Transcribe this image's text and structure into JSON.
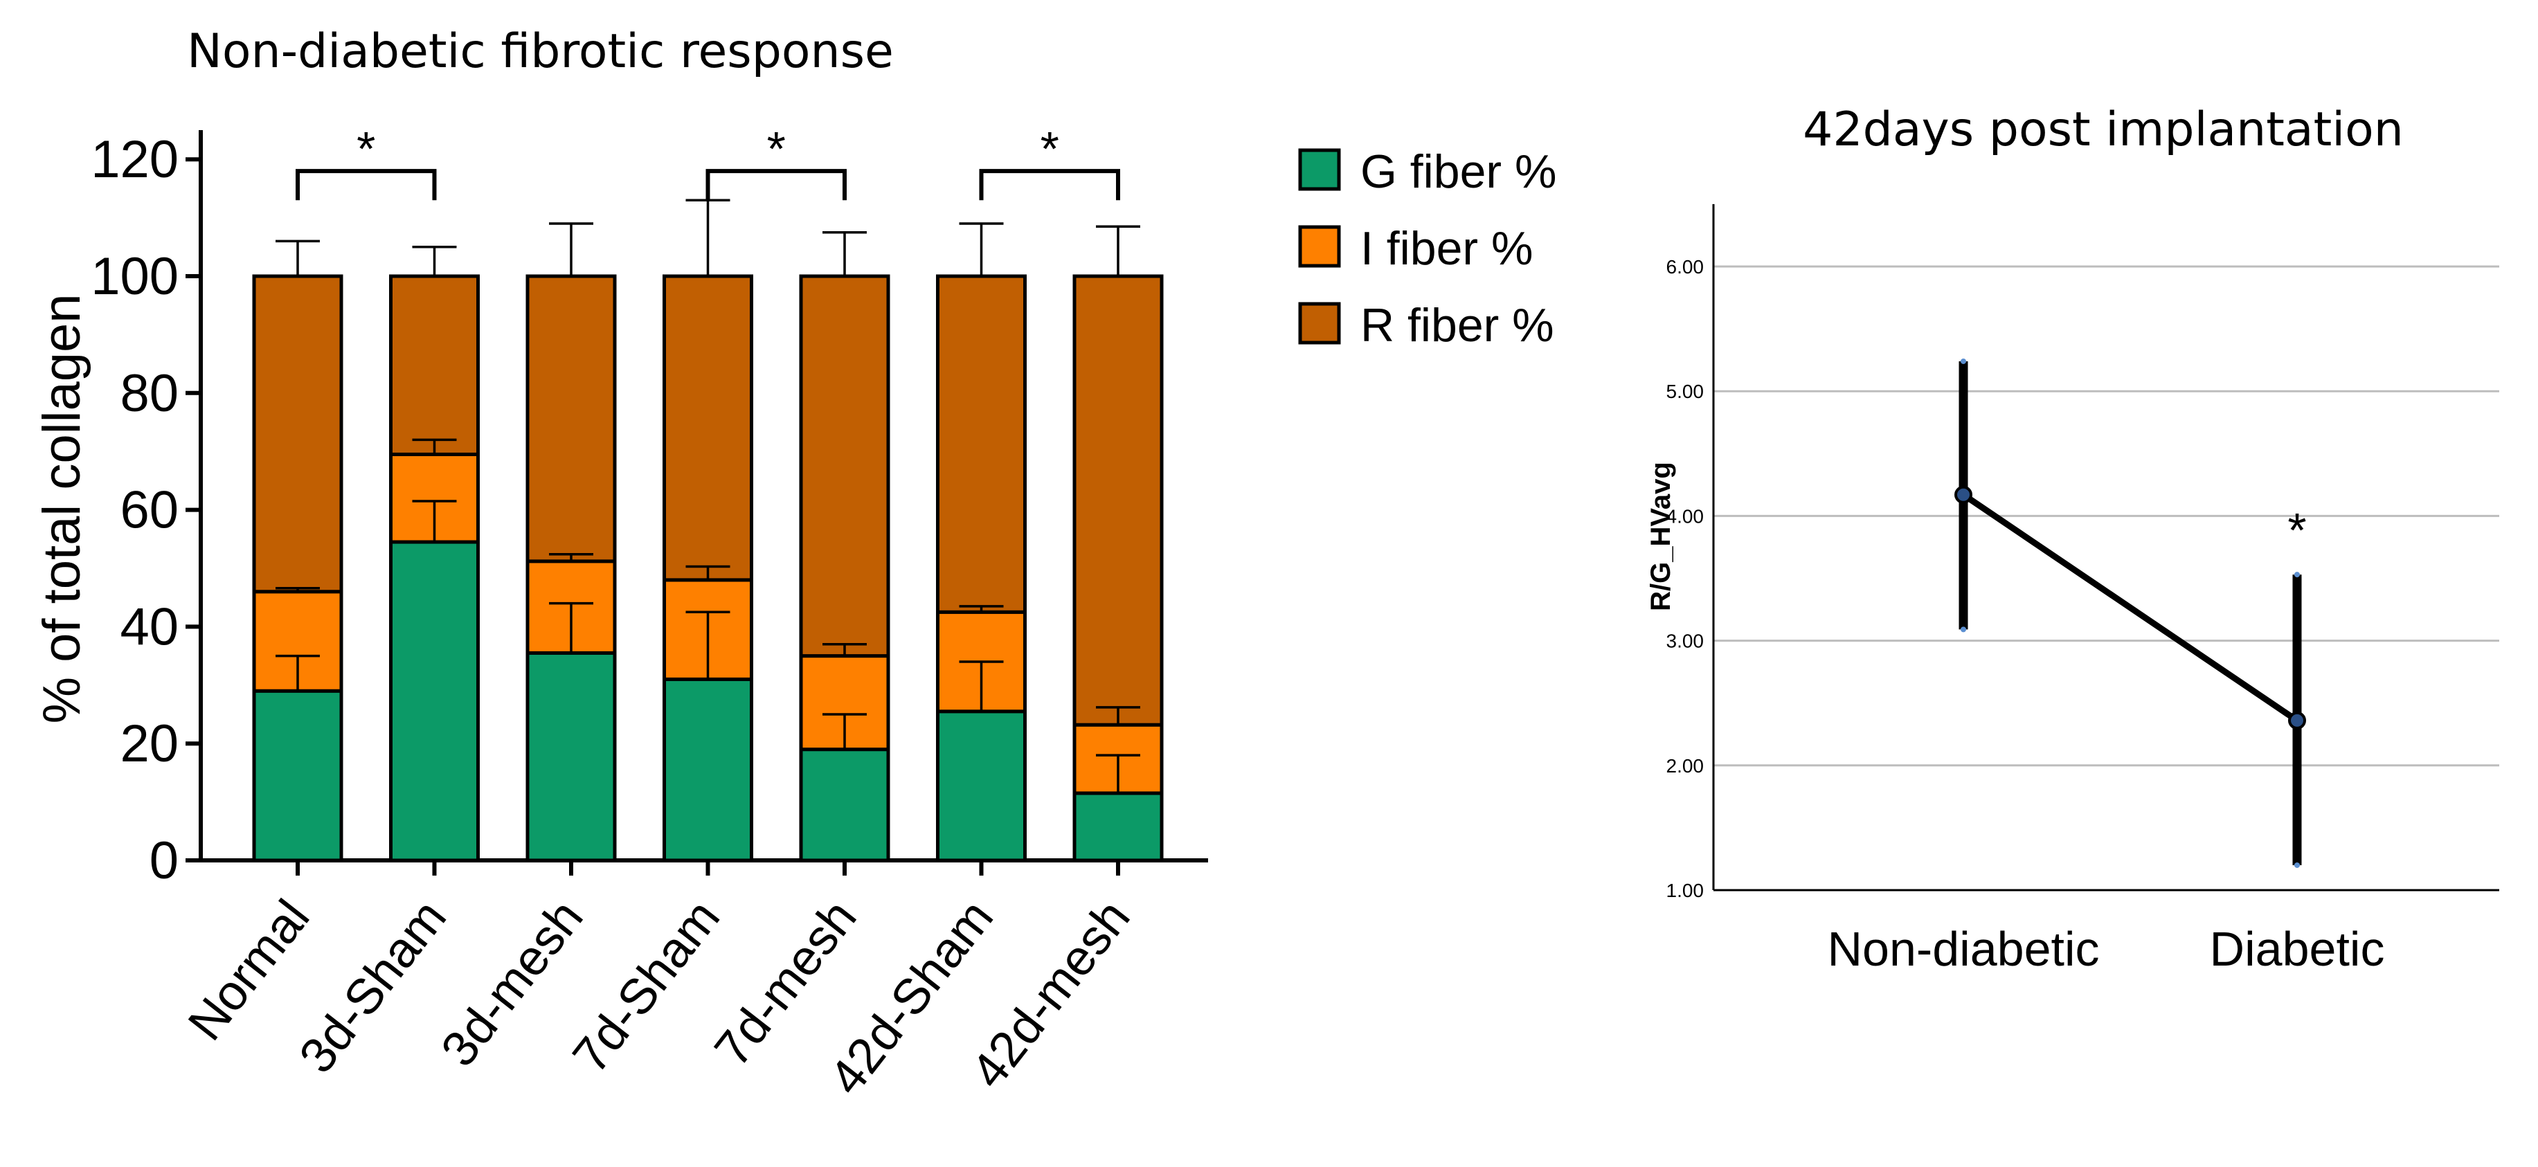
{
  "chart_data": [
    {
      "type": "bar",
      "stacked": true,
      "title": "Non-diabetic fibrotic response",
      "xlabel": "",
      "ylabel": "% of total collagen",
      "ylim": [
        0,
        125
      ],
      "yticks": [
        0,
        20,
        40,
        60,
        80,
        100,
        120
      ],
      "categories": [
        "Normal",
        "3d-Sham",
        "3d-mesh",
        "7d-Sham",
        "7d-mesh",
        "42d-Sham",
        "42d-mesh"
      ],
      "series": [
        {
          "name": "G fiber %",
          "color": "#0c9a67",
          "values": [
            29,
            54.5,
            35.5,
            31,
            19,
            25.5,
            11.5
          ],
          "error": [
            6,
            7,
            8.5,
            11.5,
            6,
            8.5,
            6.5
          ]
        },
        {
          "name": "I fiber %",
          "color": "#fe8000",
          "values": [
            17,
            15,
            15.7,
            17,
            16,
            17,
            11.7
          ],
          "error": [
            0.6,
            2.5,
            1.2,
            2.3,
            2,
            1,
            3
          ]
        },
        {
          "name": "R fiber %",
          "color": "#c15f02",
          "values": [
            54,
            30.5,
            48.8,
            52,
            65,
            57.5,
            76.8
          ],
          "error": [
            6,
            5,
            9,
            13,
            7.5,
            9,
            8.5
          ]
        }
      ],
      "legend": "right",
      "significance": [
        {
          "label": "*",
          "from": "Normal",
          "to": "3d-Sham"
        },
        {
          "label": "*",
          "from": "7d-Sham",
          "to": "7d-mesh"
        },
        {
          "label": "*",
          "from": "42d-Sham",
          "to": "42d-mesh"
        }
      ]
    },
    {
      "type": "line",
      "title": "42days post implantation",
      "xlabel": "",
      "ylabel": "R/G_HVavg",
      "ylim": [
        1.0,
        6.5
      ],
      "yticks": [
        "1.00",
        "2.00",
        "3.00",
        "4.00",
        "5.00",
        "6.00"
      ],
      "grid": true,
      "categories": [
        "Non-diabetic",
        "Diabetic"
      ],
      "series": [
        {
          "values": [
            4.17,
            2.36
          ],
          "error_low": [
            3.09,
            1.2
          ],
          "error_high": [
            5.24,
            3.53
          ],
          "color": "#000000"
        }
      ],
      "annotations": [
        {
          "label": "*",
          "category": "Diabetic"
        }
      ]
    }
  ]
}
